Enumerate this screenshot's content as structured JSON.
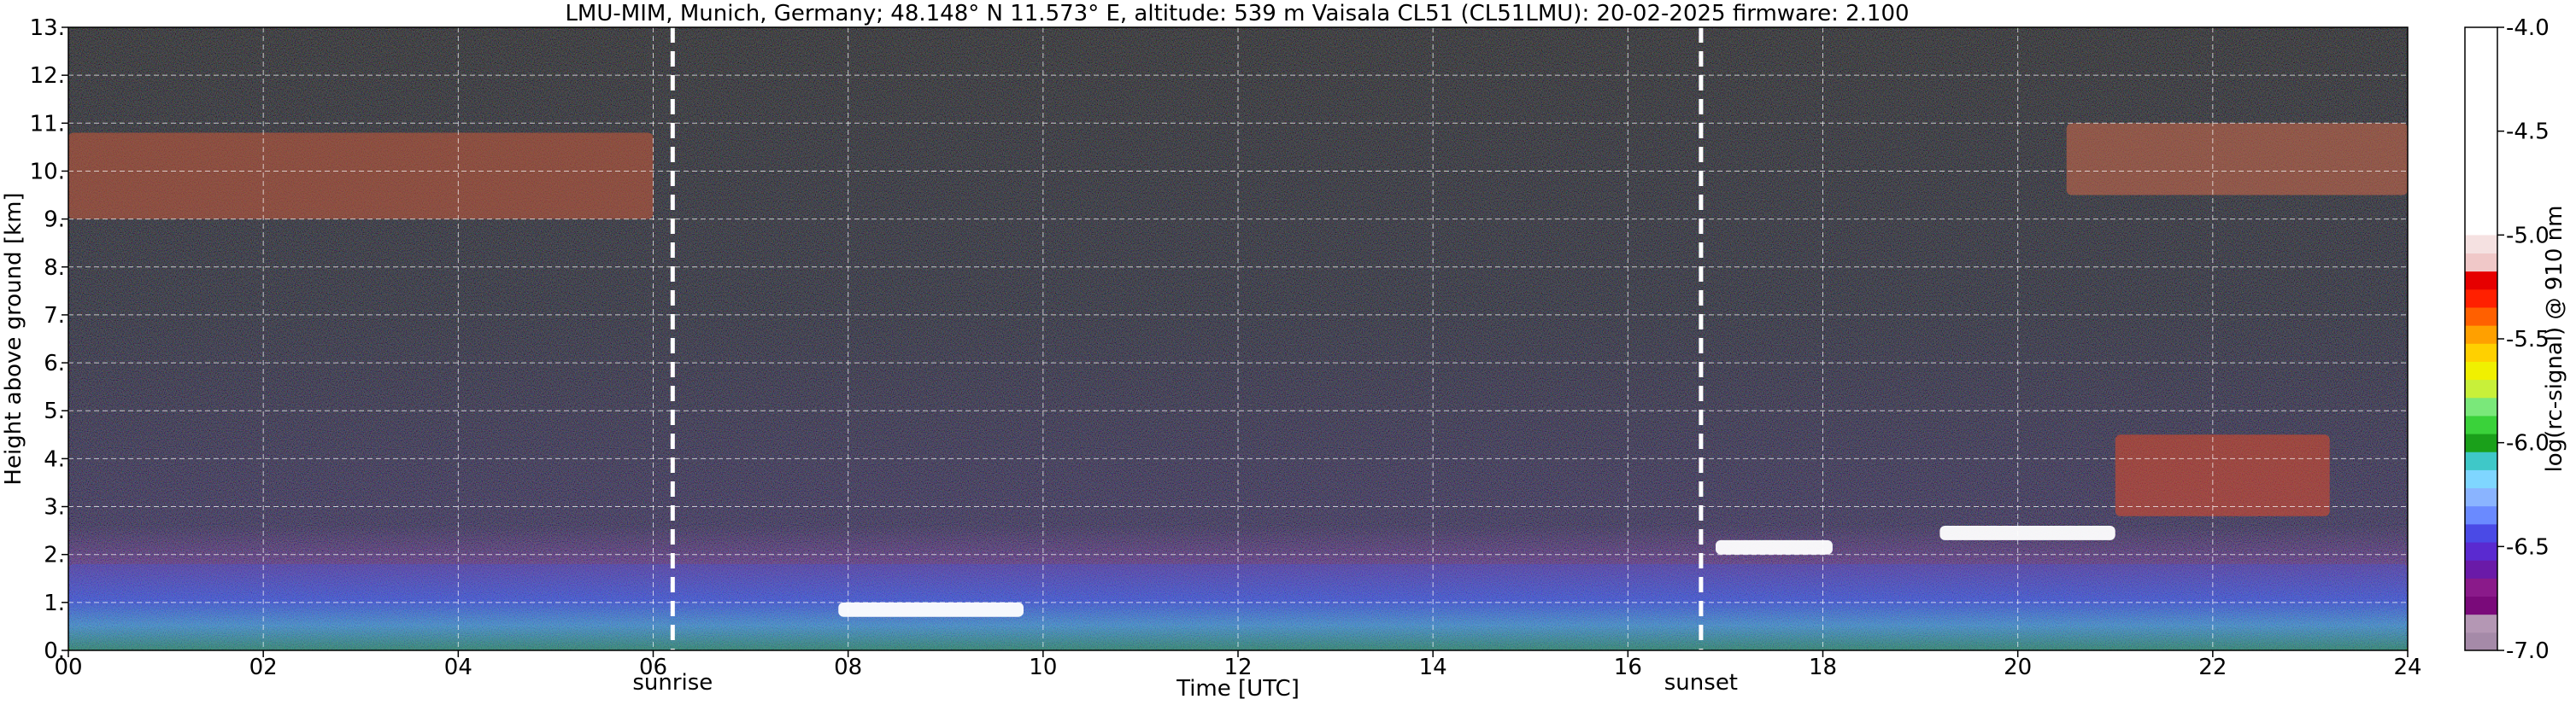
{
  "chart_data": {
    "type": "heatmap",
    "title": "LMU-MIM, Munich, Germany; 48.148° N 11.573° E, altitude: 539 m    Vaisala CL51 (CL51LMU): 20-02-2025    firmware: 2.100",
    "xlabel": "Time [UTC]",
    "ylabel": "Height above ground [km]",
    "xlim": [
      0,
      24
    ],
    "ylim": [
      0,
      13
    ],
    "x_ticks": [
      "00",
      "02",
      "04",
      "06",
      "08",
      "10",
      "12",
      "14",
      "16",
      "18",
      "20",
      "22",
      "24"
    ],
    "x_tick_values": [
      0,
      2,
      4,
      6,
      8,
      10,
      12,
      14,
      16,
      18,
      20,
      22,
      24
    ],
    "y_ticks": [
      "0.",
      "1.",
      "2.",
      "3.",
      "4.",
      "5.",
      "6.",
      "7.",
      "8.",
      "9.",
      "10.",
      "11.",
      "12.",
      "13."
    ],
    "y_tick_values": [
      0,
      1,
      2,
      3,
      4,
      5,
      6,
      7,
      8,
      9,
      10,
      11,
      12,
      13
    ],
    "grid": true,
    "markers": [
      {
        "label": "sunrise",
        "x": 6.2
      },
      {
        "label": "sunset",
        "x": 16.75
      }
    ],
    "colorbar": {
      "label": "log(rc-signal) @ 910 nm",
      "range": [
        -7.0,
        -4.0
      ],
      "ticks": [
        "-4.0",
        "-4.5",
        "-5.0",
        "-5.5",
        "-6.0",
        "-6.5",
        "-7.0"
      ],
      "tick_values": [
        -4.0,
        -4.5,
        -5.0,
        -5.5,
        -6.0,
        -6.5,
        -7.0
      ],
      "colors_bottom_to_top": [
        "#a58aa8",
        "#b497b4",
        "#7a0a7a",
        "#8a1a8a",
        "#6a1aa8",
        "#5a2ad0",
        "#4a4ae6",
        "#6a8aff",
        "#8ab4ff",
        "#7fd6ff",
        "#3fc8c8",
        "#1aa01a",
        "#3ad23a",
        "#7ae87a",
        "#c8f03a",
        "#f0f000",
        "#ffd000",
        "#ffa000",
        "#ff6000",
        "#ff2000",
        "#e60000",
        "#f0c8c8",
        "#f5e1e1",
        "#ffffff"
      ]
    },
    "features": [
      {
        "name": "cirrus-early",
        "x": [
          0,
          6
        ],
        "y": [
          9.0,
          10.8
        ]
      },
      {
        "name": "boundary-layer",
        "x": [
          0,
          24
        ],
        "y": [
          0,
          1.8
        ]
      },
      {
        "name": "cloud-08-10",
        "x": [
          7.9,
          9.8
        ],
        "y": [
          0.7,
          1.0
        ]
      },
      {
        "name": "cloud-17-19",
        "x": [
          16.9,
          18.1
        ],
        "y": [
          2.0,
          2.3
        ]
      },
      {
        "name": "cloud-19-21",
        "x": [
          19.2,
          21.0
        ],
        "y": [
          2.3,
          2.6
        ]
      },
      {
        "name": "cirrus-late",
        "x": [
          20.5,
          24
        ],
        "y": [
          9.5,
          11.0
        ]
      },
      {
        "name": "mid-cloud-late",
        "x": [
          21.0,
          23.2
        ],
        "y": [
          2.8,
          4.5
        ]
      }
    ]
  }
}
